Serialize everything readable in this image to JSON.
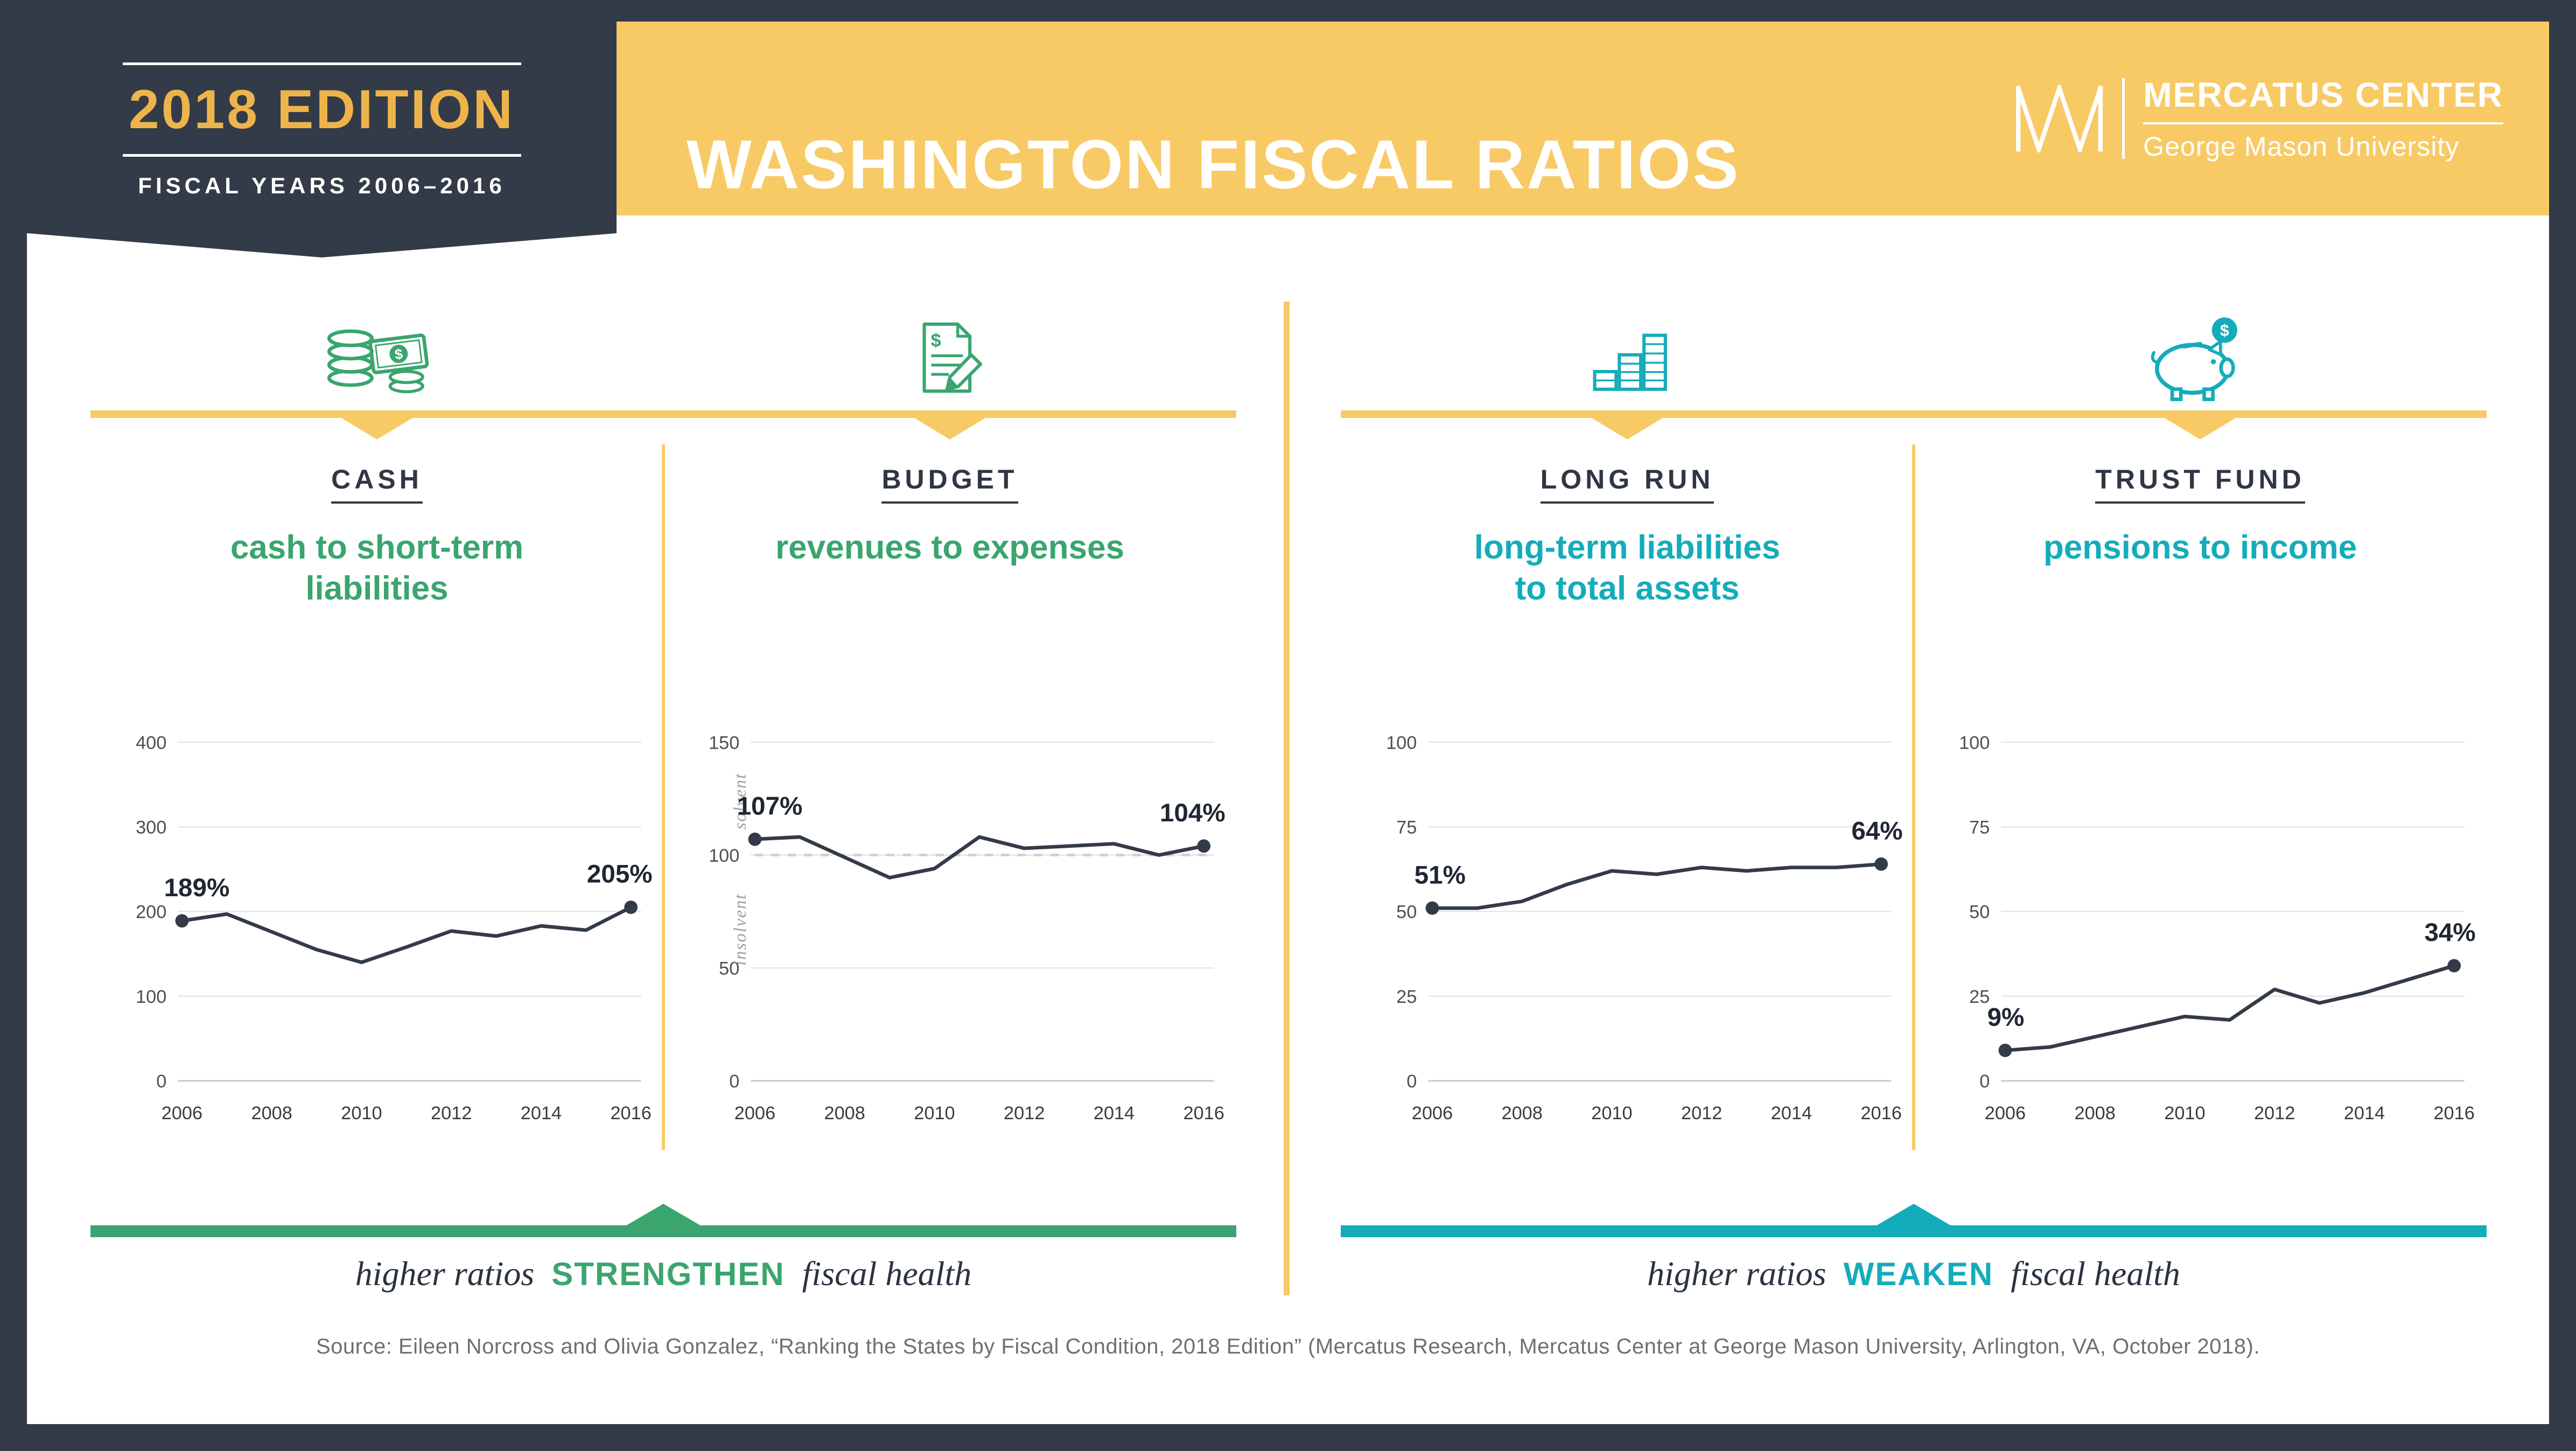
{
  "header": {
    "edition": "2018 EDITION",
    "fiscal_years": "FISCAL YEARS 2006–2016",
    "title": "WASHINGTON FISCAL RATIOS",
    "brand": {
      "name": "MERCATUS CENTER",
      "university": "George Mason University"
    }
  },
  "chart_data": [
    {
      "type": "line",
      "panel_label": "CASH",
      "title": "cash to short-term\nliabilities",
      "icon": "coins-and-banknote-icon",
      "x": [
        2006,
        2007,
        2008,
        2009,
        2010,
        2011,
        2012,
        2013,
        2014,
        2015,
        2016
      ],
      "values": [
        189,
        197,
        176,
        155,
        140,
        158,
        177,
        171,
        183,
        178,
        205
      ],
      "ylim": [
        0,
        400
      ],
      "yticks": [
        0,
        100,
        200,
        300,
        400
      ],
      "xticks": [
        2006,
        2008,
        2010,
        2012,
        2014,
        2016
      ],
      "first_point_label": "189%",
      "last_point_label": "205%",
      "accent": "#3aa56e",
      "direction": "strengthen"
    },
    {
      "type": "line",
      "panel_label": "BUDGET",
      "title": "revenues to expenses",
      "icon": "document-dollar-pencil-icon",
      "x": [
        2006,
        2007,
        2008,
        2009,
        2010,
        2011,
        2012,
        2013,
        2014,
        2015,
        2016
      ],
      "values": [
        107,
        108,
        99,
        90,
        94,
        108,
        103,
        104,
        105,
        100,
        104
      ],
      "ylim": [
        0,
        150
      ],
      "yticks": [
        0,
        50,
        100,
        150
      ],
      "xticks": [
        2006,
        2008,
        2010,
        2012,
        2014,
        2016
      ],
      "first_point_label": "107%",
      "last_point_label": "104%",
      "reference_line": {
        "value": 100,
        "label_above": "solvent",
        "label_below": "insolvent"
      },
      "accent": "#3aa56e",
      "direction": "strengthen"
    },
    {
      "type": "line",
      "panel_label": "LONG RUN",
      "title": "long-term liabilities\nto total assets",
      "icon": "rising-coin-stacks-icon",
      "x": [
        2006,
        2007,
        2008,
        2009,
        2010,
        2011,
        2012,
        2013,
        2014,
        2015,
        2016
      ],
      "values": [
        51,
        51,
        53,
        58,
        62,
        61,
        63,
        62,
        63,
        63,
        64
      ],
      "ylim": [
        0,
        100
      ],
      "yticks": [
        0,
        25,
        50,
        75,
        100
      ],
      "xticks": [
        2006,
        2008,
        2010,
        2012,
        2014,
        2016
      ],
      "first_point_label": "51%",
      "last_point_label": "64%",
      "accent": "#14acba",
      "direction": "weaken"
    },
    {
      "type": "line",
      "panel_label": "TRUST FUND",
      "title": "pensions to income",
      "icon": "piggy-bank-icon",
      "x": [
        2006,
        2007,
        2008,
        2009,
        2010,
        2011,
        2012,
        2013,
        2014,
        2015,
        2016
      ],
      "values": [
        9,
        10,
        13,
        16,
        19,
        18,
        27,
        23,
        26,
        30,
        34
      ],
      "ylim": [
        0,
        100
      ],
      "yticks": [
        0,
        25,
        50,
        75,
        100
      ],
      "xticks": [
        2006,
        2008,
        2010,
        2012,
        2014,
        2016
      ],
      "first_point_label": "9%",
      "last_point_label": "34%",
      "accent": "#14acba",
      "direction": "weaken"
    }
  ],
  "footer": {
    "strengthen_note": {
      "prefix": "higher ratios",
      "keyword": "STRENGTHEN",
      "suffix": "fiscal health"
    },
    "weaken_note": {
      "prefix": "higher ratios",
      "keyword": "WEAKEN",
      "suffix": "fiscal health"
    },
    "source": "Source: Eileen Norcross and Olivia Gonzalez, “Ranking the States by Fiscal Condition, 2018 Edition” (Mercatus Research, Mercatus Center at George Mason University, Arlington, VA, October 2018)."
  },
  "colors": {
    "navy": "#333b48",
    "gold": "#f8ca66",
    "gold_text": "#eeb44c",
    "green": "#3aa56e",
    "teal": "#14acba",
    "grid": "#e4e4e4",
    "axis_text": "#4f4f4f",
    "muted": "#9aa0a6",
    "source_text": "#6f6f6f"
  }
}
